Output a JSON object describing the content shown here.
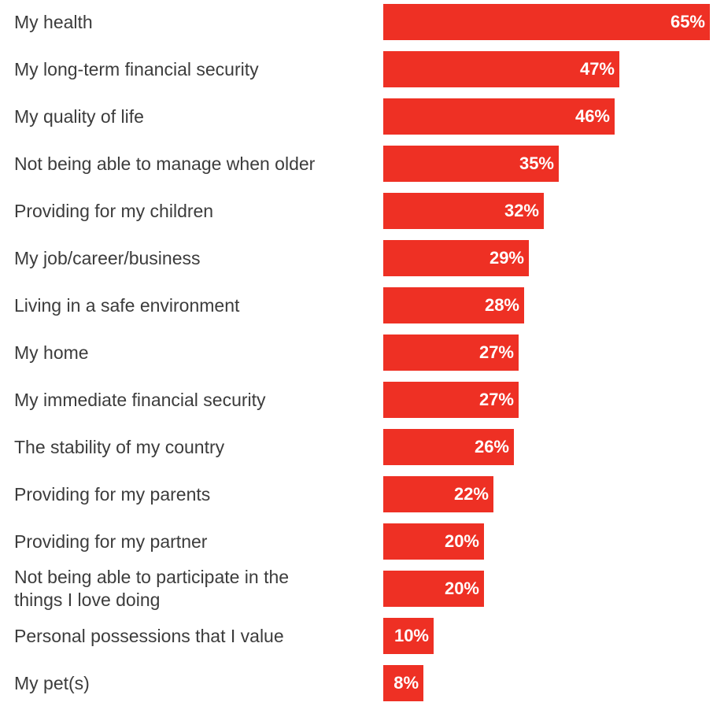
{
  "chart_data": {
    "type": "bar",
    "orientation": "horizontal",
    "title": "",
    "xlabel": "",
    "ylabel": "",
    "xlim": [
      0,
      65
    ],
    "grid": false,
    "legend": "none",
    "bar_color": "#ee3024",
    "value_label_color": "#ffffff",
    "category_label_color": "#3c3c3c",
    "categories": [
      "My health",
      "My long-term financial security",
      "My quality of life",
      "Not being able to manage when older",
      "Providing for my children",
      "My job/career/business",
      "Living in a safe environment",
      "My home",
      "My immediate financial security",
      "The stability of my country",
      "Providing for my parents",
      "Providing for my partner",
      "Not being able to participate in the\nthings I love doing",
      "Personal possessions that I value",
      "My pet(s)"
    ],
    "values": [
      65,
      47,
      46,
      35,
      32,
      29,
      28,
      27,
      27,
      26,
      22,
      20,
      20,
      10,
      8
    ],
    "value_labels": [
      "65%",
      "47%",
      "46%",
      "35%",
      "32%",
      "29%",
      "28%",
      "27%",
      "27%",
      "26%",
      "22%",
      "20%",
      "20%",
      "10%",
      "8%"
    ]
  }
}
